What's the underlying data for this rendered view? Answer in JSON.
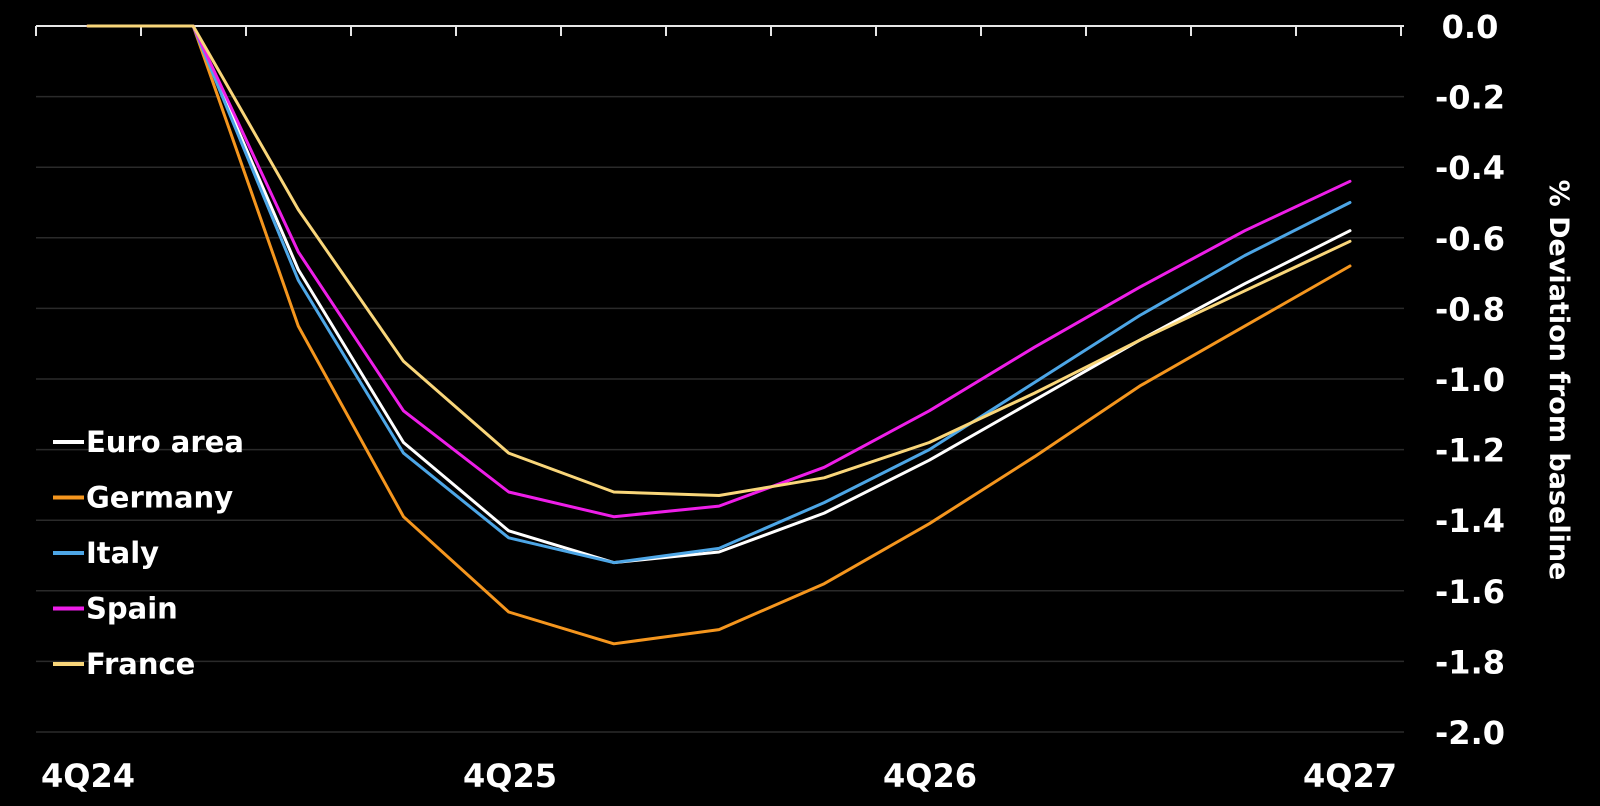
{
  "chart_data": {
    "type": "line",
    "x": [
      "4Q24",
      "1Q25",
      "2Q25",
      "3Q25",
      "4Q25",
      "1Q26",
      "2Q26",
      "3Q26",
      "4Q26",
      "1Q27",
      "2Q27",
      "3Q27",
      "4Q27"
    ],
    "x_tick_labels": [
      "4Q24",
      "4Q25",
      "4Q26",
      "4Q27"
    ],
    "ylabel": "% Deviation from baseline",
    "ylim": [
      -2.0,
      0.0
    ],
    "y_ticks": [
      "0.0",
      "-0.2",
      "-0.4",
      "-0.6",
      "-0.8",
      "-1.0",
      "-1.2",
      "-1.4",
      "-1.6",
      "-1.8",
      "-2.0"
    ],
    "y_axis_position": "right",
    "grid": true,
    "legend_position": "left",
    "series": [
      {
        "name": "Euro area",
        "color": "#ffffff",
        "values": [
          0.0,
          0.0,
          -0.69,
          -1.18,
          -1.43,
          -1.52,
          -1.49,
          -1.38,
          -1.23,
          -1.06,
          -0.89,
          -0.73,
          -0.58
        ]
      },
      {
        "name": "Germany",
        "color": "#f5961e",
        "values": [
          0.0,
          0.0,
          -0.85,
          -1.39,
          -1.66,
          -1.75,
          -1.71,
          -1.58,
          -1.41,
          -1.22,
          -1.02,
          -0.85,
          -0.68
        ]
      },
      {
        "name": "Italy",
        "color": "#4da6e6",
        "values": [
          0.0,
          0.0,
          -0.72,
          -1.21,
          -1.45,
          -1.52,
          -1.48,
          -1.35,
          -1.2,
          -1.01,
          -0.82,
          -0.65,
          -0.5
        ]
      },
      {
        "name": "Spain",
        "color": "#ee1ee8",
        "values": [
          0.0,
          0.0,
          -0.64,
          -1.09,
          -1.32,
          -1.39,
          -1.36,
          -1.25,
          -1.09,
          -0.91,
          -0.74,
          -0.58,
          -0.44
        ]
      },
      {
        "name": "France",
        "color": "#f9d67a",
        "values": [
          0.0,
          0.0,
          -0.52,
          -0.95,
          -1.21,
          -1.32,
          -1.33,
          -1.28,
          -1.18,
          -1.04,
          -0.89,
          -0.75,
          -0.61
        ]
      }
    ]
  }
}
